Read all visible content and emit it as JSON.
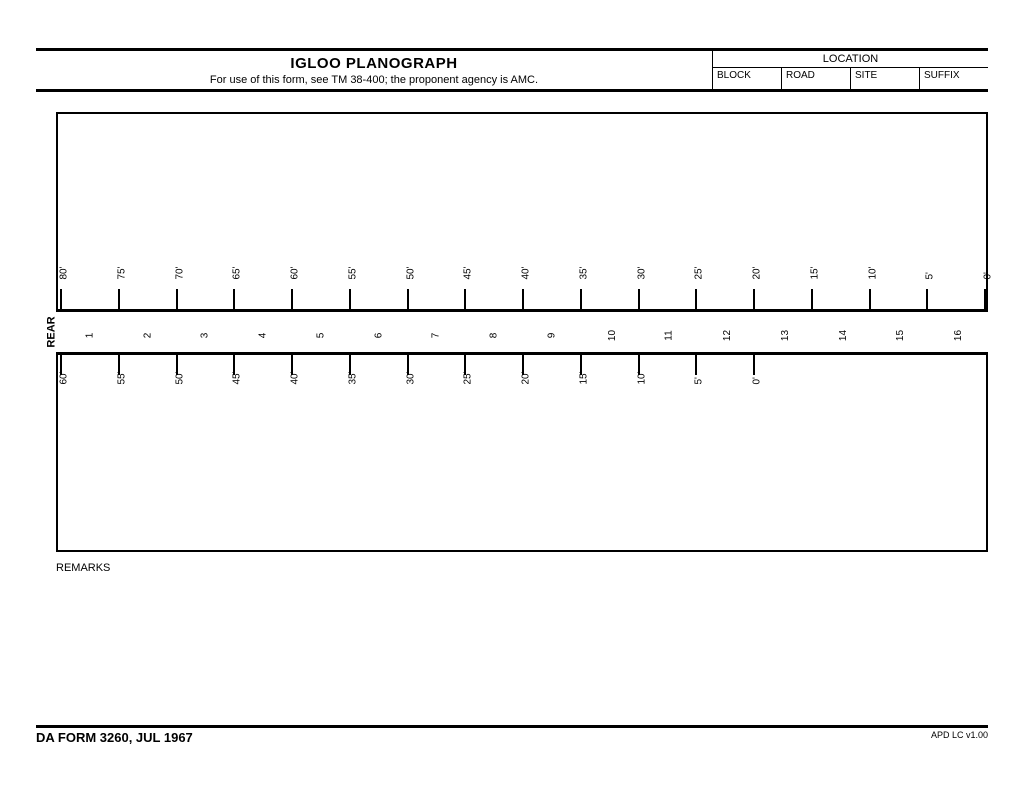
{
  "header": {
    "title": "IGLOO PLANOGRAPH",
    "subtitle": "For use of this form, see TM 38-400; the proponent agency is AMC.",
    "location_label": "LOCATION",
    "location_cols": [
      "BLOCK",
      "ROAD",
      "SITE",
      "SUFFIX"
    ]
  },
  "diagram": {
    "rear_label": "REAR",
    "top_scale": {
      "count": 17,
      "labels": [
        "80'",
        "75'",
        "70'",
        "65'",
        "60'",
        "55'",
        "50'",
        "45'",
        "40'",
        "35'",
        "30'",
        "25'",
        "20'",
        "15'",
        "10'",
        "5'",
        "0'"
      ]
    },
    "middle_numbers": [
      "1",
      "2",
      "3",
      "4",
      "5",
      "6",
      "7",
      "8",
      "9",
      "10",
      "11",
      "12",
      "13",
      "14",
      "15",
      "16"
    ],
    "bottom_scale": {
      "count": 13,
      "labels": [
        "60'",
        "55'",
        "50'",
        "45'",
        "40'",
        "35'",
        "30'",
        "25'",
        "20'",
        "15'",
        "10'",
        "5'",
        "0'"
      ]
    }
  },
  "remarks_label": "REMARKS",
  "footer": {
    "form_id": "DA FORM 3260, JUL 1967",
    "version": "APD LC v1.00"
  },
  "style": {
    "tick_color": "#000000",
    "border_color": "#000000",
    "font_size_labels": 10
  }
}
